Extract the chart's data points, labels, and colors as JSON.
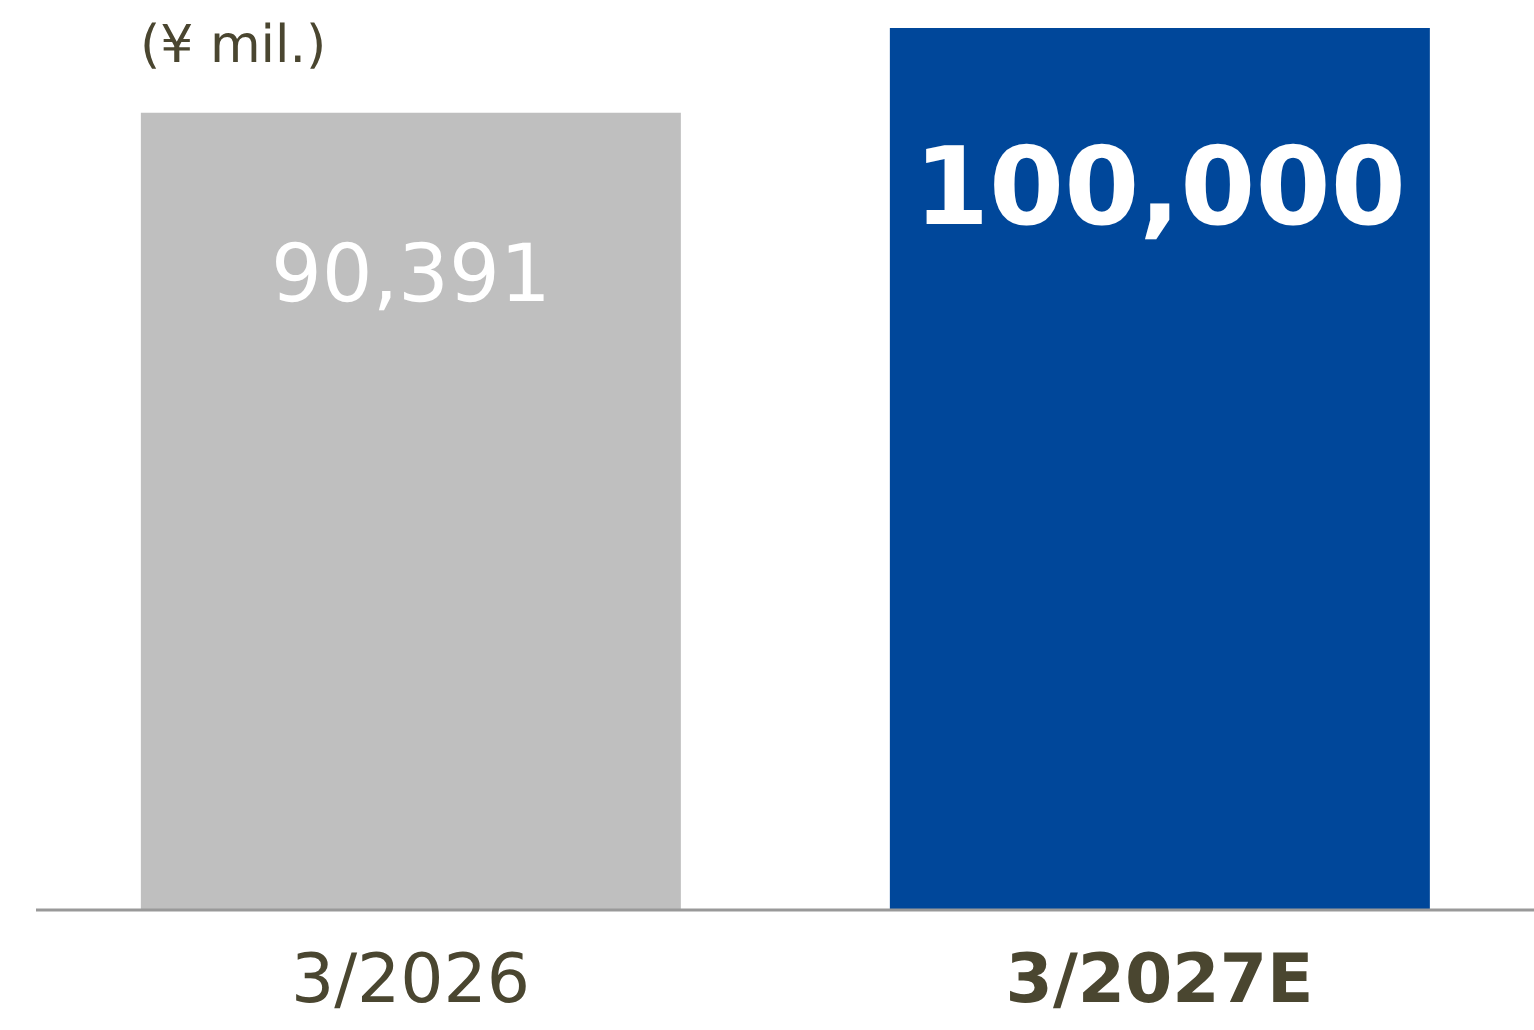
{
  "chart_data": {
    "type": "bar",
    "ylabel": "(¥ mil.)",
    "categories": [
      "3/2026",
      "3/2027E"
    ],
    "values": [
      90391,
      100000
    ],
    "colors": [
      "#bfbfbf",
      "#00479a"
    ],
    "value_labels": [
      "90,391",
      "100,000"
    ],
    "grid": false,
    "legend": false
  }
}
